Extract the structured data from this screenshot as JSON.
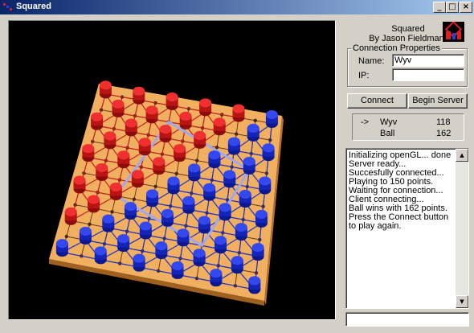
{
  "window": {
    "title": "Squared",
    "icon": "app-icon",
    "controls": {
      "minimize": "_",
      "maximize": "□",
      "close": "×"
    }
  },
  "about": {
    "title": "Squared",
    "author": "By Jason Fieldman"
  },
  "connection": {
    "group_label": "Connection Properties",
    "name_label": "Name:",
    "name_value": "Wyv",
    "ip_label": "IP:",
    "ip_value": ""
  },
  "buttons": {
    "connect": "Connect",
    "begin_server": "Begin Server"
  },
  "scores": [
    {
      "indicator": "->",
      "name": "Wyv",
      "score": "118"
    },
    {
      "indicator": "",
      "name": "Ball",
      "score": "162"
    }
  ],
  "log": {
    "lines": [
      "Initializing openGL... done",
      "Server ready...",
      "Succesfully connected...",
      "Playing to 150 points.",
      "Waiting for connection...",
      "Client connecting...",
      "Ball wins with 162 points.  Press the Connect button to play again."
    ]
  },
  "chat_input": {
    "value": ""
  },
  "colors": {
    "red_player": "#d01818",
    "blue_player": "#1828d0",
    "board": "#f0b060",
    "background": "#000000"
  }
}
